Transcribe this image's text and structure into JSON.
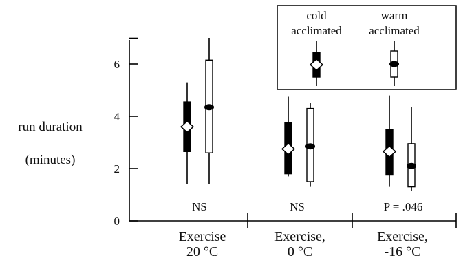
{
  "chart_data": {
    "type": "box",
    "ylabel_line1": "run duration",
    "ylabel_line2": "(minutes)",
    "ylim": [
      0,
      7
    ],
    "yticks": [
      0,
      2,
      4,
      6
    ],
    "categories": [
      {
        "line1": "Exercise",
        "line2": "20 °C",
        "significance": "NS"
      },
      {
        "line1": "Exercise,",
        "line2": "0 °C",
        "significance": "NS"
      },
      {
        "line1": "Exercise,",
        "line2": "-16 °C",
        "significance": "P = .046"
      }
    ],
    "series": [
      {
        "name": "cold acclimated",
        "legend_line1": "cold",
        "legend_line2": "acclimated",
        "fill": "#000000",
        "median_marker": "open-diamond",
        "values": [
          {
            "min": 1.4,
            "q1": 2.65,
            "median": 3.6,
            "q3": 4.55,
            "max": 5.3
          },
          {
            "min": 1.7,
            "q1": 1.8,
            "median": 2.75,
            "q3": 3.75,
            "max": 4.75
          },
          {
            "min": 1.3,
            "q1": 1.75,
            "median": 2.65,
            "q3": 3.5,
            "max": 4.8
          }
        ]
      },
      {
        "name": "warm acclimated",
        "legend_line1": "warm",
        "legend_line2": "acclimated",
        "fill": "#ffffff",
        "median_marker": "filled-circle",
        "values": [
          {
            "min": 1.4,
            "q1": 2.6,
            "median": 4.35,
            "q3": 6.15,
            "max": 7.0
          },
          {
            "min": 1.3,
            "q1": 1.5,
            "median": 2.85,
            "q3": 4.3,
            "max": 4.5
          },
          {
            "min": 1.15,
            "q1": 1.3,
            "median": 2.1,
            "q3": 2.95,
            "max": 4.35
          }
        ]
      }
    ]
  }
}
